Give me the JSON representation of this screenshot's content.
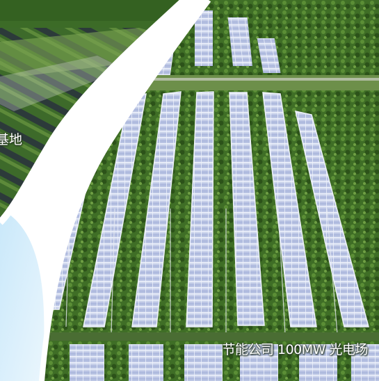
{
  "photos": {
    "left_photo": {
      "label_fragment": "基地"
    },
    "right_photo": {
      "caption": "节能公司 100MW 光电场"
    }
  },
  "colors": {
    "vegetation_dark": "#2f5a1e",
    "vegetation_light": "#5f8f3a",
    "panel": "#b9c3e0",
    "panel_edge": "#eef2fb",
    "frame": "#e8ecf3",
    "mask_white": "#ffffff",
    "mask_blue": "#d7eefb"
  }
}
